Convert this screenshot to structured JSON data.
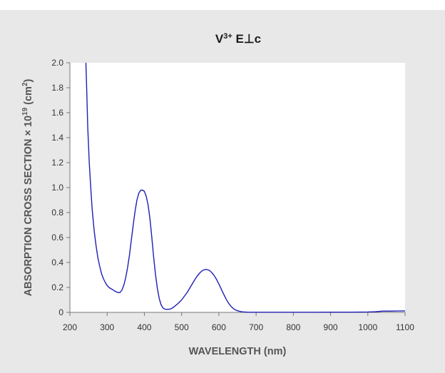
{
  "chart_data": {
    "type": "line",
    "title": {
      "base": "V",
      "superscript": "3+",
      "rest": " E⊥c"
    },
    "xlabel": "WAVELENGTH (nm)",
    "ylabel": {
      "base": "ABSORPTION CROSS SECTION × 10",
      "exponent": "19",
      "unit_open": " (cm",
      "unit_exponent": "2",
      "unit_close": ")"
    },
    "xlim": [
      200,
      1100
    ],
    "ylim": [
      0,
      2.0
    ],
    "x_ticks": [
      200,
      300,
      400,
      500,
      600,
      700,
      800,
      900,
      1000,
      1100
    ],
    "x_tick_labels": [
      "200",
      "300",
      "400",
      "500",
      "600",
      "700",
      "800",
      "900",
      "1000",
      "1100"
    ],
    "y_ticks": [
      0,
      0.2,
      0.4,
      0.6,
      0.8,
      1.0,
      1.2,
      1.4,
      1.6,
      1.8,
      2.0
    ],
    "y_tick_labels": [
      "0",
      "0.2",
      "0.4",
      "0.6",
      "0.8",
      "1.0",
      "1.2",
      "1.4",
      "1.6",
      "1.8",
      "2.0"
    ],
    "grid": false,
    "line_color": "#1f1fb4",
    "series": [
      {
        "x": [
          243,
          245,
          248,
          252,
          256,
          260,
          265,
          270,
          275,
          280,
          285,
          290,
          295,
          300,
          305,
          310,
          315,
          320,
          325,
          330,
          335,
          340,
          345,
          350,
          355,
          360,
          365,
          370,
          375,
          380,
          385,
          390,
          395,
          400,
          405,
          410,
          415,
          420,
          425,
          430,
          435,
          440,
          445,
          450,
          455,
          460,
          465,
          470,
          475,
          480,
          485,
          490,
          495,
          500,
          505,
          510,
          515,
          520,
          525,
          530,
          535,
          540,
          545,
          550,
          555,
          560,
          565,
          570,
          575,
          580,
          585,
          590,
          595,
          600,
          605,
          610,
          615,
          620,
          625,
          630,
          635,
          640,
          645,
          650,
          655,
          660,
          665,
          670,
          675,
          680,
          690,
          700,
          720,
          750,
          800,
          850,
          900,
          950,
          1000,
          1020,
          1040,
          1060,
          1080,
          1100
        ],
        "y": [
          2.0,
          1.8,
          1.48,
          1.2,
          1.0,
          0.82,
          0.66,
          0.54,
          0.44,
          0.37,
          0.31,
          0.27,
          0.24,
          0.215,
          0.2,
          0.19,
          0.182,
          0.172,
          0.164,
          0.158,
          0.16,
          0.18,
          0.22,
          0.28,
          0.36,
          0.46,
          0.58,
          0.7,
          0.81,
          0.9,
          0.955,
          0.978,
          0.98,
          0.97,
          0.93,
          0.86,
          0.75,
          0.6,
          0.44,
          0.3,
          0.19,
          0.11,
          0.06,
          0.035,
          0.026,
          0.024,
          0.025,
          0.027,
          0.035,
          0.045,
          0.058,
          0.07,
          0.085,
          0.1,
          0.12,
          0.14,
          0.16,
          0.185,
          0.21,
          0.235,
          0.26,
          0.283,
          0.303,
          0.32,
          0.333,
          0.341,
          0.344,
          0.342,
          0.335,
          0.322,
          0.305,
          0.283,
          0.257,
          0.228,
          0.196,
          0.164,
          0.133,
          0.104,
          0.079,
          0.058,
          0.041,
          0.028,
          0.019,
          0.013,
          0.009,
          0.006,
          0.004,
          0.003,
          0.002,
          0.001,
          0.001,
          0.001,
          0.001,
          0.001,
          0.001,
          0.001,
          0.002,
          0.002,
          0.003,
          0.005,
          0.01,
          0.01,
          0.011,
          0.012
        ]
      }
    ]
  }
}
